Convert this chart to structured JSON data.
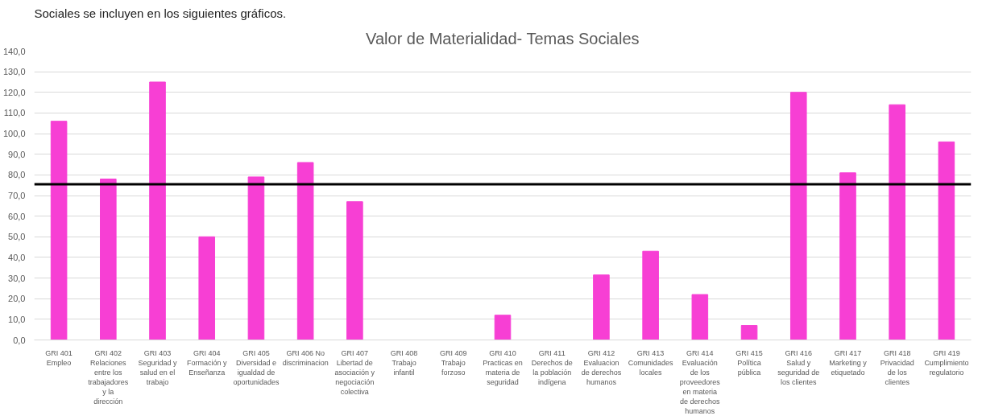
{
  "chart_data": {
    "type": "bar",
    "title": "Valor de Materialidad- Temas Sociales",
    "annotations": [
      "Sociales se incluyen en los siguientes gráficos."
    ],
    "categories": [
      "GRI 401 Empleo",
      "GRI 402 Relaciones entre los trabajadores y la dirección",
      "GRI 403 Seguridad y salud en el trabajo",
      "GRI 404 Formación y Enseñanza",
      "GRI 405 Diversidad e igualdad de oportunidades",
      "GRI 406 No discriminacion",
      "GRI 407 Libertad de asociación y negociación colectiva",
      "GRI 408 Trabajo infantil",
      "GRI 409 Trabajo forzoso",
      "GRI 410 Practicas en materia de seguridad",
      "GRI 411 Derechos de la población indígena",
      "GRI 412 Evaluacion de derechos humanos",
      "GRI 413 Comunidades locales",
      "GRI 414 Evaluación de los proveedores en materia de derechos humanos",
      "GRI 415 Política pública",
      "GRI 416 Salud y seguridad de los clientes",
      "GRI 417 Marketing y etiquetado",
      "GRI 418 Privacidad de los clientes",
      "GRI 419 Cumplimiento regulatorio"
    ],
    "values": [
      106,
      78,
      125,
      50,
      79,
      86,
      67,
      0,
      0,
      12,
      0,
      31.5,
      43,
      22,
      7,
      120,
      81,
      114,
      96
    ],
    "color": "#f73fd4",
    "ylim": [
      0,
      140
    ],
    "yticks": [
      {
        "value": 0,
        "label": "0,0"
      },
      {
        "value": 10,
        "label": "10,0"
      },
      {
        "value": 20,
        "label": "20,0"
      },
      {
        "value": 30,
        "label": "30,0"
      },
      {
        "value": 40,
        "label": "40,0"
      },
      {
        "value": 50,
        "label": "50,0"
      },
      {
        "value": 60,
        "label": "60,0"
      },
      {
        "value": 70,
        "label": "70,0"
      },
      {
        "value": 80,
        "label": "80,0"
      },
      {
        "value": 90,
        "label": "90,0"
      },
      {
        "value": 100,
        "label": "100,0"
      },
      {
        "value": 110,
        "label": "110,0"
      },
      {
        "value": 120,
        "label": "120,0"
      },
      {
        "value": 130,
        "label": "130,0"
      },
      {
        "value": 140,
        "label": "140,0"
      }
    ],
    "grid": "y",
    "ref_lines": [
      {
        "axis": "y",
        "value": 75.5,
        "color": "#000000"
      }
    ]
  }
}
